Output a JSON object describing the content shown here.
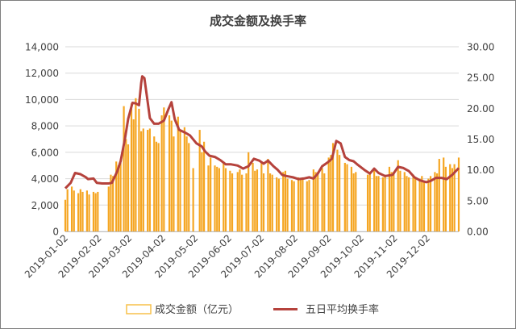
{
  "chart_data": {
    "type": "bar+line",
    "title": "成交金额及换手率",
    "colors": {
      "bars": "#f5a623",
      "bar_edge": "#f7c04a",
      "line": "#b5423c",
      "grid": "#d9d9d9",
      "text": "#404040"
    },
    "y_left": {
      "ticks": [
        "0",
        "2,000",
        "4,000",
        "6,000",
        "8,000",
        "10,000",
        "12,000",
        "14,000"
      ],
      "lim": [
        0,
        14000
      ]
    },
    "y_right": {
      "ticks": [
        "0.00",
        "5.00",
        "10.00",
        "15.00",
        "20.00",
        "25.00",
        "30.00"
      ],
      "lim": [
        0,
        30
      ]
    },
    "x_ticks": [
      "2019-01-02",
      "2019-02-02",
      "2019-03-02",
      "2019-04-02",
      "2019-05-02",
      "2019-06-02",
      "2019-07-02",
      "2019-08-02",
      "2019-09-02",
      "2019-10-02",
      "2019-11-02",
      "2019-12-02"
    ],
    "x_range": [
      "2019-01-02",
      "2019-12-31"
    ],
    "legend": {
      "position": "bottom",
      "bar_label": "成交金额（亿元）",
      "line_label": "五日平均换手率"
    },
    "series": [
      {
        "name": "成交金额（亿元）",
        "kind": "bar",
        "points": [
          [
            "2019-01-02",
            2400
          ],
          [
            "2019-01-04",
            3200
          ],
          [
            "2019-01-08",
            3400
          ],
          [
            "2019-01-10",
            3100
          ],
          [
            "2019-01-14",
            2900
          ],
          [
            "2019-01-16",
            3200
          ],
          [
            "2019-01-18",
            3000
          ],
          [
            "2019-01-22",
            3100
          ],
          [
            "2019-01-24",
            2800
          ],
          [
            "2019-01-28",
            3000
          ],
          [
            "2019-01-30",
            2900
          ],
          [
            "2019-02-01",
            3000
          ],
          [
            "2019-02-11",
            3400
          ],
          [
            "2019-02-13",
            4300
          ],
          [
            "2019-02-15",
            4200
          ],
          [
            "2019-02-18",
            5300
          ],
          [
            "2019-02-20",
            5000
          ],
          [
            "2019-02-22",
            5200
          ],
          [
            "2019-02-25",
            9500
          ],
          [
            "2019-02-27",
            7000
          ],
          [
            "2019-03-01",
            6600
          ],
          [
            "2019-03-04",
            9700
          ],
          [
            "2019-03-06",
            8500
          ],
          [
            "2019-03-08",
            10100
          ],
          [
            "2019-03-11",
            9300
          ],
          [
            "2019-03-13",
            7600
          ],
          [
            "2019-03-15",
            7800
          ],
          [
            "2019-03-19",
            7700
          ],
          [
            "2019-03-21",
            7800
          ],
          [
            "2019-03-25",
            7200
          ],
          [
            "2019-03-27",
            6800
          ],
          [
            "2019-03-29",
            6700
          ],
          [
            "2019-04-01",
            8800
          ],
          [
            "2019-04-03",
            9400
          ],
          [
            "2019-04-08",
            8800
          ],
          [
            "2019-04-10",
            8400
          ],
          [
            "2019-04-12",
            7200
          ],
          [
            "2019-04-16",
            8700
          ],
          [
            "2019-04-18",
            7600
          ],
          [
            "2019-04-22",
            7900
          ],
          [
            "2019-04-24",
            7200
          ],
          [
            "2019-04-26",
            6700
          ],
          [
            "2019-04-30",
            4800
          ],
          [
            "2019-05-06",
            7700
          ],
          [
            "2019-05-08",
            6000
          ],
          [
            "2019-05-10",
            6800
          ],
          [
            "2019-05-14",
            5000
          ],
          [
            "2019-05-16",
            5600
          ],
          [
            "2019-05-20",
            5000
          ],
          [
            "2019-05-22",
            4900
          ],
          [
            "2019-05-24",
            4800
          ],
          [
            "2019-05-28",
            5300
          ],
          [
            "2019-05-30",
            4800
          ],
          [
            "2019-06-03",
            4600
          ],
          [
            "2019-06-05",
            4400
          ],
          [
            "2019-06-10",
            4500
          ],
          [
            "2019-06-12",
            4700
          ],
          [
            "2019-06-14",
            4300
          ],
          [
            "2019-06-18",
            4400
          ],
          [
            "2019-06-20",
            6000
          ],
          [
            "2019-06-24",
            5200
          ],
          [
            "2019-06-26",
            4600
          ],
          [
            "2019-06-28",
            4700
          ],
          [
            "2019-07-02",
            5200
          ],
          [
            "2019-07-04",
            4400
          ],
          [
            "2019-07-08",
            5500
          ],
          [
            "2019-07-10",
            4400
          ],
          [
            "2019-07-12",
            4300
          ],
          [
            "2019-07-16",
            4100
          ],
          [
            "2019-07-18",
            4000
          ],
          [
            "2019-07-22",
            4500
          ],
          [
            "2019-07-24",
            4600
          ],
          [
            "2019-07-26",
            4000
          ],
          [
            "2019-07-30",
            3900
          ],
          [
            "2019-08-01",
            3800
          ],
          [
            "2019-08-05",
            4100
          ],
          [
            "2019-08-07",
            4000
          ],
          [
            "2019-08-09",
            4100
          ],
          [
            "2019-08-13",
            3800
          ],
          [
            "2019-08-15",
            3900
          ],
          [
            "2019-08-19",
            4700
          ],
          [
            "2019-08-21",
            4500
          ],
          [
            "2019-08-23",
            4500
          ],
          [
            "2019-08-27",
            4800
          ],
          [
            "2019-08-29",
            4400
          ],
          [
            "2019-09-02",
            5600
          ],
          [
            "2019-09-04",
            5800
          ],
          [
            "2019-09-06",
            6700
          ],
          [
            "2019-09-10",
            6200
          ],
          [
            "2019-09-12",
            5800
          ],
          [
            "2019-09-17",
            5200
          ],
          [
            "2019-09-19",
            5100
          ],
          [
            "2019-09-23",
            4900
          ],
          [
            "2019-09-25",
            4400
          ],
          [
            "2019-09-27",
            4500
          ],
          [
            "2019-10-08",
            4300
          ],
          [
            "2019-10-10",
            4400
          ],
          [
            "2019-10-14",
            4800
          ],
          [
            "2019-10-16",
            4200
          ],
          [
            "2019-10-18",
            4200
          ],
          [
            "2019-10-22",
            4100
          ],
          [
            "2019-10-24",
            4300
          ],
          [
            "2019-10-28",
            4900
          ],
          [
            "2019-10-30",
            4500
          ],
          [
            "2019-11-01",
            4500
          ],
          [
            "2019-11-05",
            5400
          ],
          [
            "2019-11-07",
            4600
          ],
          [
            "2019-11-11",
            4500
          ],
          [
            "2019-11-13",
            4200
          ],
          [
            "2019-11-15",
            4100
          ],
          [
            "2019-11-19",
            4300
          ],
          [
            "2019-11-21",
            4000
          ],
          [
            "2019-11-25",
            4000
          ],
          [
            "2019-11-27",
            4200
          ],
          [
            "2019-11-29",
            3800
          ],
          [
            "2019-12-03",
            4000
          ],
          [
            "2019-12-05",
            4200
          ],
          [
            "2019-12-09",
            4500
          ],
          [
            "2019-12-11",
            4400
          ],
          [
            "2019-12-13",
            5500
          ],
          [
            "2019-12-17",
            5600
          ],
          [
            "2019-12-19",
            4900
          ],
          [
            "2019-12-23",
            5100
          ],
          [
            "2019-12-25",
            4800
          ],
          [
            "2019-12-27",
            5100
          ],
          [
            "2019-12-31",
            5600
          ]
        ]
      },
      {
        "name": "五日平均换手率",
        "kind": "line",
        "points": [
          [
            "2019-01-02",
            7.0
          ],
          [
            "2019-01-07",
            7.9
          ],
          [
            "2019-01-11",
            9.5
          ],
          [
            "2019-01-16",
            9.3
          ],
          [
            "2019-01-21",
            8.8
          ],
          [
            "2019-01-23",
            8.5
          ],
          [
            "2019-01-28",
            8.6
          ],
          [
            "2019-01-31",
            7.9
          ],
          [
            "2019-02-05",
            7.8
          ],
          [
            "2019-02-11",
            7.8
          ],
          [
            "2019-02-14",
            7.9
          ],
          [
            "2019-02-19",
            9.8
          ],
          [
            "2019-02-22",
            11.4
          ],
          [
            "2019-02-26",
            15.0
          ],
          [
            "2019-03-01",
            18.3
          ],
          [
            "2019-03-05",
            20.9
          ],
          [
            "2019-03-08",
            20.8
          ],
          [
            "2019-03-11",
            20.5
          ],
          [
            "2019-03-13",
            24.1
          ],
          [
            "2019-03-14",
            25.2
          ],
          [
            "2019-03-16",
            24.9
          ],
          [
            "2019-03-19",
            21.0
          ],
          [
            "2019-03-21",
            18.4
          ],
          [
            "2019-03-25",
            17.5
          ],
          [
            "2019-03-29",
            17.5
          ],
          [
            "2019-04-03",
            18.0
          ],
          [
            "2019-04-07",
            19.8
          ],
          [
            "2019-04-10",
            21.0
          ],
          [
            "2019-04-13",
            18.2
          ],
          [
            "2019-04-17",
            16.5
          ],
          [
            "2019-04-22",
            16.1
          ],
          [
            "2019-04-27",
            15.6
          ],
          [
            "2019-05-03",
            14.3
          ],
          [
            "2019-05-08",
            13.8
          ],
          [
            "2019-05-11",
            13.0
          ],
          [
            "2019-05-15",
            12.3
          ],
          [
            "2019-05-20",
            12.1
          ],
          [
            "2019-05-25",
            11.6
          ],
          [
            "2019-05-30",
            10.9
          ],
          [
            "2019-06-04",
            10.9
          ],
          [
            "2019-06-10",
            10.7
          ],
          [
            "2019-06-15",
            10.2
          ],
          [
            "2019-06-20",
            10.6
          ],
          [
            "2019-06-25",
            11.8
          ],
          [
            "2019-06-30",
            11.5
          ],
          [
            "2019-07-04",
            11.0
          ],
          [
            "2019-07-08",
            11.5
          ],
          [
            "2019-07-13",
            10.6
          ],
          [
            "2019-07-17",
            10.0
          ],
          [
            "2019-07-21",
            9.2
          ],
          [
            "2019-07-25",
            9.0
          ],
          [
            "2019-07-31",
            8.8
          ],
          [
            "2019-08-05",
            8.5
          ],
          [
            "2019-08-10",
            8.6
          ],
          [
            "2019-08-15",
            8.8
          ],
          [
            "2019-08-19",
            8.6
          ],
          [
            "2019-08-23",
            9.4
          ],
          [
            "2019-08-27",
            10.6
          ],
          [
            "2019-09-01",
            11.2
          ],
          [
            "2019-09-05",
            11.8
          ],
          [
            "2019-09-09",
            14.7
          ],
          [
            "2019-09-13",
            14.3
          ],
          [
            "2019-09-17",
            12.1
          ],
          [
            "2019-09-21",
            11.6
          ],
          [
            "2019-09-25",
            11.4
          ],
          [
            "2019-09-29",
            10.8
          ],
          [
            "2019-10-05",
            10.0
          ],
          [
            "2019-10-10",
            9.4
          ],
          [
            "2019-10-14",
            10.2
          ],
          [
            "2019-10-18",
            9.5
          ],
          [
            "2019-10-24",
            9.0
          ],
          [
            "2019-10-31",
            9.2
          ],
          [
            "2019-11-05",
            10.5
          ],
          [
            "2019-11-10",
            10.3
          ],
          [
            "2019-11-15",
            9.8
          ],
          [
            "2019-11-20",
            8.8
          ],
          [
            "2019-11-25",
            8.3
          ],
          [
            "2019-12-01",
            8.0
          ],
          [
            "2019-12-05",
            8.2
          ],
          [
            "2019-12-10",
            8.7
          ],
          [
            "2019-12-15",
            8.7
          ],
          [
            "2019-12-20",
            8.5
          ],
          [
            "2019-12-25",
            9.2
          ],
          [
            "2019-12-31",
            10.3
          ]
        ]
      }
    ]
  }
}
